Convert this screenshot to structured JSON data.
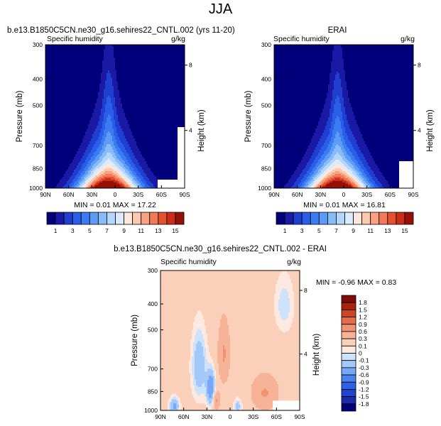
{
  "page_title": "JJA",
  "colors": {
    "seq": [
      "#00007a",
      "#1919a6",
      "#1f3fd0",
      "#2a5ee8",
      "#3c7cf2",
      "#5d9cf6",
      "#88bcf8",
      "#b4d6fa",
      "#d9ebfc",
      "#fde7da",
      "#fbc9ae",
      "#f8a283",
      "#f27a58",
      "#e5502f",
      "#c92d18",
      "#951108"
    ],
    "div": [
      "#00007a",
      "#1a2aab",
      "#1f44cf",
      "#2e62e6",
      "#4a84f1",
      "#76a8f6",
      "#a4c8f9",
      "#cde2fb",
      "#fde9df",
      "#fad0bb",
      "#f7b397",
      "#f19270",
      "#e56d48",
      "#cc4624",
      "#a8220f",
      "#7f0d05"
    ]
  },
  "chart_data": [
    {
      "id": "model",
      "type": "heatmap",
      "title": "b.e13.B1850C5CN.ne30_g16.sehires22_CNTL.002 (yrs 11-20)",
      "left_string": "Specific humidity",
      "units": "g/kg",
      "ylabel": "Pressure (mb)",
      "ylabel_right": "Height (km)",
      "y_ticks": [
        "300",
        "400",
        "500",
        "700",
        "850",
        "1000"
      ],
      "y_ticks_right": [
        "8",
        "4"
      ],
      "x_ticks": [
        "90N",
        "60N",
        "30N",
        "0",
        "30S",
        "60S",
        "90S"
      ],
      "xlim": [
        -90,
        90
      ],
      "ylim_pressure": [
        1000,
        300
      ],
      "stats": "MIN =  0.01  MAX =  17.22",
      "min": 0.01,
      "max": 17.22,
      "levels": [
        1,
        2,
        3,
        4,
        5,
        6,
        7,
        8,
        9,
        10,
        11,
        12,
        13,
        14,
        15
      ],
      "colorbar_labels": [
        "1",
        "3",
        "5",
        "7",
        "9",
        "11",
        "13",
        "15"
      ]
    },
    {
      "id": "obs",
      "type": "heatmap",
      "title": "ERAI",
      "left_string": "Specific humidity",
      "units": "g/kg",
      "ylabel": "Pressure (mb)",
      "ylabel_right": "Height (km)",
      "y_ticks": [
        "300",
        "400",
        "500",
        "700",
        "850",
        "1000"
      ],
      "y_ticks_right": [
        "8",
        "4"
      ],
      "x_ticks": [
        "90N",
        "60N",
        "30N",
        "0",
        "30S",
        "60S",
        "90S"
      ],
      "xlim": [
        -90,
        90
      ],
      "ylim_pressure": [
        1000,
        300
      ],
      "stats": "MIN =  0.01  MAX =  16.81",
      "min": 0.01,
      "max": 16.81,
      "levels": [
        1,
        2,
        3,
        4,
        5,
        6,
        7,
        8,
        9,
        10,
        11,
        12,
        13,
        14,
        15
      ],
      "colorbar_labels": [
        "1",
        "3",
        "5",
        "7",
        "9",
        "11",
        "13",
        "15"
      ]
    },
    {
      "id": "diff",
      "type": "heatmap",
      "title": "b.e13.B1850C5CN.ne30_g16.sehires22_CNTL.002 - ERAI",
      "left_string": "Specific humidity",
      "units": "g/kg",
      "ylabel": "Pressure (mb)",
      "ylabel_right": "Height (km)",
      "y_ticks": [
        "300",
        "400",
        "500",
        "700",
        "850",
        "1000"
      ],
      "y_ticks_right": [
        "8",
        "4"
      ],
      "x_ticks": [
        "90N",
        "60N",
        "30N",
        "0",
        "30S",
        "60S",
        "90S"
      ],
      "xlim": [
        -90,
        90
      ],
      "ylim_pressure": [
        1000,
        300
      ],
      "stats": "MIN = -0.96  MAX =  0.83",
      "min": -0.96,
      "max": 0.83,
      "levels": [
        -1.8,
        -1.5,
        -1.2,
        -0.9,
        -0.6,
        -0.3,
        -0.1,
        0,
        0.1,
        0.3,
        0.6,
        0.9,
        1.2,
        1.5,
        1.8
      ],
      "colorbar_labels": [
        "1.8",
        "1.5",
        "1.2",
        "0.9",
        "0.6",
        "0.3",
        "0.1",
        "0",
        "-0.1",
        "-0.3",
        "-0.6",
        "-0.9",
        "-1.2",
        "-1.5",
        "-1.8"
      ]
    }
  ]
}
